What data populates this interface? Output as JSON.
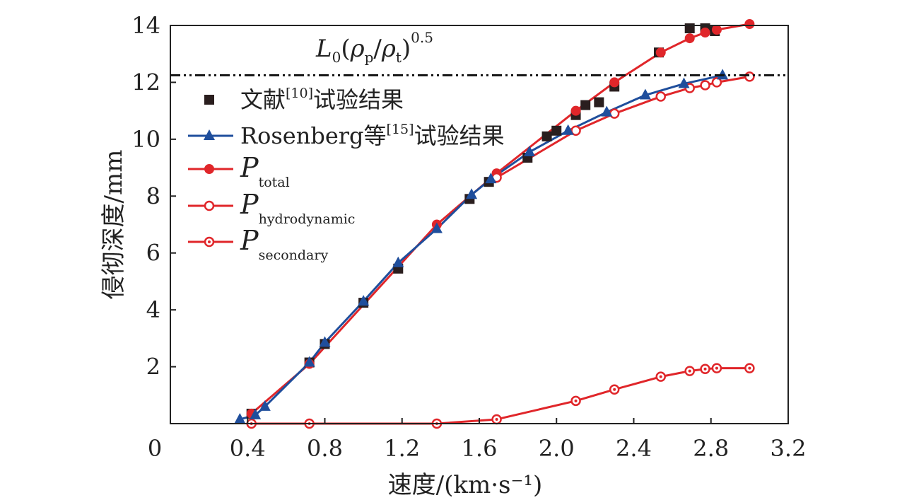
{
  "chart_data": {
    "type": "line",
    "xlabel": "速度/(km·s⁻¹)",
    "ylabel": "侵彻深度/mm",
    "xlim": [
      0,
      3.2
    ],
    "ylim": [
      0,
      14
    ],
    "xticks": [
      "0",
      "0.4",
      "0.8",
      "1.2",
      "1.6",
      "2.0",
      "2.4",
      "2.8",
      "3.2"
    ],
    "xtick_values": [
      0,
      0.4,
      0.8,
      1.2,
      1.6,
      2.0,
      2.4,
      2.8,
      3.2
    ],
    "yticks": [
      "2",
      "4",
      "6",
      "8",
      "10",
      "12",
      "14"
    ],
    "ytick_values": [
      2,
      4,
      6,
      8,
      10,
      12,
      14
    ],
    "grid": false,
    "legend_position": "top-left",
    "reference_line": {
      "y": 12.25,
      "style": "dash-dot",
      "label": "L0(ρp/ρt)0.5",
      "label_parts": {
        "L": "L",
        "L_sub": "0",
        "rho": "ρ",
        "p_sub": "p",
        "slash": "/",
        "t_sub": "t",
        "exp": "0.5"
      }
    },
    "series": [
      {
        "name": "文献[10]试验结果",
        "name_main": "文献",
        "name_ref": "[10]",
        "name_tail": "试验结果",
        "marker": "square",
        "color": "#2a1e1e",
        "line": false,
        "x": [
          0.42,
          0.72,
          0.8,
          1.0,
          1.18,
          1.55,
          1.65,
          1.85,
          1.95,
          2.0,
          2.1,
          2.15,
          2.22,
          2.3,
          2.53,
          2.69,
          2.77,
          2.82
        ],
        "y": [
          0.35,
          2.15,
          2.8,
          4.25,
          5.45,
          7.9,
          8.5,
          9.35,
          10.1,
          10.3,
          10.85,
          11.2,
          11.3,
          11.85,
          13.05,
          13.9,
          13.9,
          13.8
        ]
      },
      {
        "name": "Rosenberg等[15]试验结果",
        "name_main": "Rosenberg等",
        "name_ref": "[15]",
        "name_tail": "试验结果",
        "marker": "triangle",
        "color": "#1f4e9c",
        "line": true,
        "x": [
          0.36,
          0.44,
          0.49,
          0.72,
          0.8,
          1.0,
          1.18,
          1.38,
          1.56,
          1.66,
          1.86,
          2.06,
          2.26,
          2.46,
          2.66,
          2.86
        ],
        "y": [
          0.15,
          0.3,
          0.6,
          2.15,
          2.85,
          4.3,
          5.65,
          6.85,
          8.05,
          8.6,
          9.55,
          10.3,
          10.95,
          11.55,
          11.95,
          12.25
        ]
      },
      {
        "name": "Ptotal",
        "name_main": "P",
        "name_sub": "total",
        "marker": "circle-filled",
        "color": "#e0262a",
        "line": true,
        "x": [
          0.42,
          0.72,
          1.38,
          1.69,
          2.1,
          2.3,
          2.54,
          2.69,
          2.77,
          2.83,
          3.0
        ],
        "y": [
          0.35,
          2.1,
          7.0,
          8.8,
          11.0,
          12.0,
          13.05,
          13.55,
          13.75,
          13.85,
          14.05
        ]
      },
      {
        "name": "Phydrodynamic",
        "name_main": "P",
        "name_sub": "hydrodynamic",
        "marker": "circle-open",
        "color": "#e0262a",
        "line": true,
        "x": [
          1.69,
          2.1,
          2.3,
          2.54,
          2.69,
          2.77,
          2.83,
          3.0
        ],
        "y": [
          8.65,
          10.3,
          10.9,
          11.5,
          11.8,
          11.9,
          12.0,
          12.2
        ]
      },
      {
        "name": "Psecondary",
        "name_main": "P",
        "name_sub": "secondary",
        "marker": "circle-dot",
        "color": "#e0262a",
        "line": true,
        "x": [
          0.42,
          0.72,
          1.38,
          1.69,
          2.1,
          2.3,
          2.54,
          2.69,
          2.77,
          2.83,
          3.0
        ],
        "y": [
          0.0,
          0.0,
          0.0,
          0.15,
          0.8,
          1.2,
          1.65,
          1.85,
          1.92,
          1.95,
          1.95
        ]
      }
    ]
  }
}
